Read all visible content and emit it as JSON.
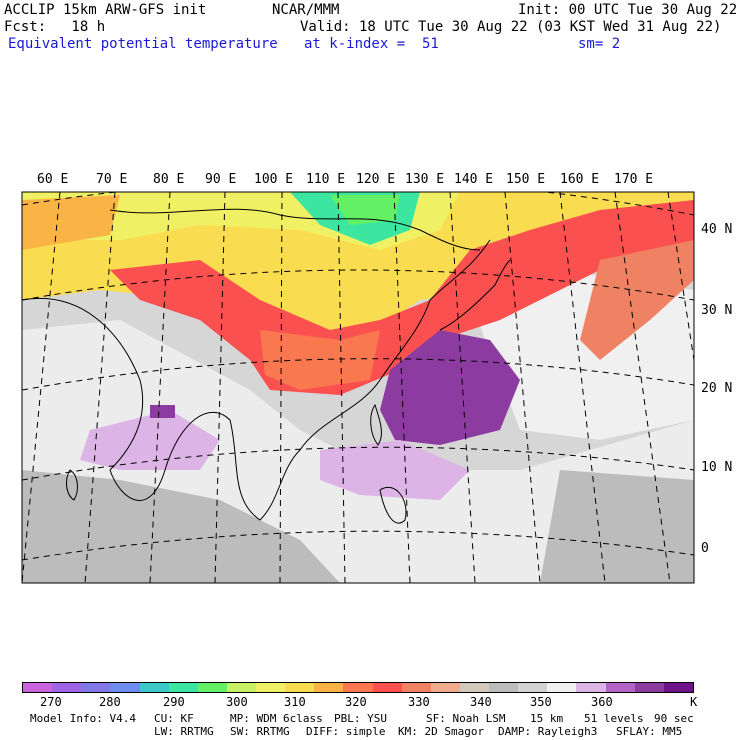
{
  "header": {
    "line1_left": "ACCLIP 15km ARW-GFS init",
    "line1_mid": "NCAR/MMM",
    "line1_right": "Init: 00 UTC Tue 30 Aug 22",
    "line2_left": "Fcst:   18 h",
    "line2_right": "Valid: 18 UTC Tue 30 Aug 22 (03 KST Wed 31 Aug 22)",
    "line3_left": "Equivalent potential temperature",
    "line3_mid": "at k-index =  51",
    "line3_right": "sm= 2"
  },
  "map": {
    "lon_labels": [
      "60 E",
      "70 E",
      "80 E",
      "90 E",
      "100 E",
      "110 E",
      "120 E",
      "130 E",
      "140 E",
      "150 E",
      "160 E",
      "170 E"
    ],
    "lat_labels": [
      "40 N",
      "30 N",
      "20 N",
      "10 N",
      "0"
    ]
  },
  "colorbar": {
    "colors": [
      "#c864dc",
      "#a064e6",
      "#8278e6",
      "#6e8cf0",
      "#3cc8c8",
      "#3ce6a0",
      "#64f064",
      "#c8f064",
      "#f0f064",
      "#fadc50",
      "#fab446",
      "#fa7850",
      "#fa5050",
      "#f08264",
      "#f0aa8c",
      "#d2c8bc",
      "#bcbcbc",
      "#d2d2d2",
      "#f0f0f0",
      "#dcb4e6",
      "#b464c8",
      "#8c3ca0",
      "#6e1488"
    ],
    "ticks": [
      "270",
      "280",
      "290",
      "300",
      "310",
      "320",
      "330",
      "340",
      "350",
      "360"
    ],
    "unit": "K"
  },
  "footer": {
    "line1": [
      "Model Info: V4.4",
      "CU: KF",
      "MP: WDM 6class",
      "PBL: YSU",
      "SF: Noah LSM",
      "15 km",
      "51 levels",
      "90 sec"
    ],
    "line2": [
      "LW: RRTMG",
      "SW: RRTMG",
      "DIFF: simple",
      "KM: 2D Smagor",
      "DAMP: Rayleigh3",
      "SFLAY: MM5"
    ]
  }
}
